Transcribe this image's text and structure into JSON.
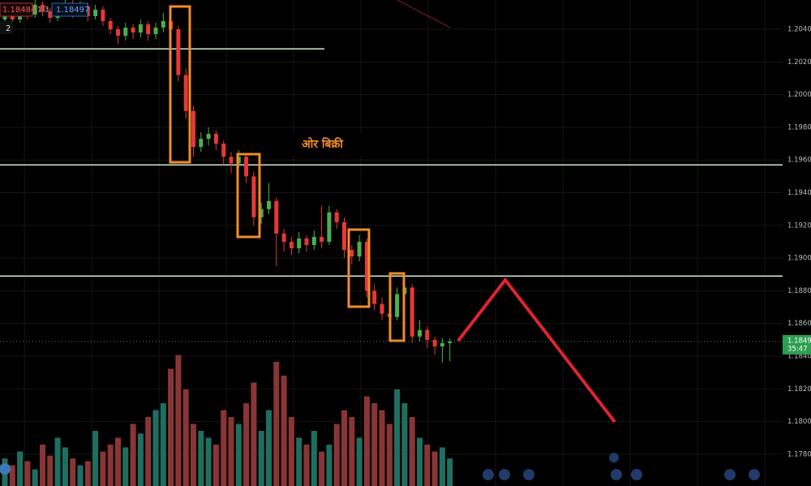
{
  "toolbar": {
    "bid": "1.18484",
    "spread": "1.3",
    "ask": "1.18497",
    "indicator_count": "2"
  },
  "chart_data": {
    "type": "candlestick",
    "annotation": "ओर बिक्री",
    "ylim": [
      1.17606,
      1.20579
    ],
    "yticks": [
      {
        "value": 1.204,
        "label": "1.20400"
      },
      {
        "value": 1.202,
        "label": "1.20200"
      },
      {
        "value": 1.2,
        "label": "1.20000"
      },
      {
        "value": 1.198,
        "label": "1.19800"
      },
      {
        "value": 1.196,
        "label": "1.19600"
      },
      {
        "value": 1.194,
        "label": "1.19400"
      },
      {
        "value": 1.192,
        "label": "1.19200"
      },
      {
        "value": 1.19,
        "label": "1.19000"
      },
      {
        "value": 1.188,
        "label": "1.18800"
      },
      {
        "value": 1.186,
        "label": "1.18600"
      },
      {
        "value": 1.184,
        "label": "1.18400"
      },
      {
        "value": 1.182,
        "label": "1.18200"
      },
      {
        "value": 1.18,
        "label": "1.18000"
      },
      {
        "value": 1.178,
        "label": "1.17800"
      }
    ],
    "grid": true,
    "up_color": "#4caf50",
    "down_color": "#e53935",
    "up_volume_color": "#1f6f60",
    "down_volume_color": "#8a3535",
    "level_color": "#cfe8cf",
    "levels": [
      1.2028,
      1.1957,
      1.1889
    ],
    "last_price": 1.1849,
    "countdown": "35:47",
    "ohlc": [
      [
        1.2046,
        1.2054,
        1.2043,
        1.205
      ],
      [
        1.205,
        1.2053,
        1.2043,
        1.2046
      ],
      [
        1.2046,
        1.2055,
        1.2044,
        1.2052
      ],
      [
        1.2052,
        1.2054,
        1.2046,
        1.2049
      ],
      [
        1.2049,
        1.2058,
        1.2047,
        1.2055
      ],
      [
        1.2055,
        1.2057,
        1.2048,
        1.2051
      ],
      [
        1.2051,
        1.2053,
        1.2044,
        1.2047
      ],
      [
        1.2047,
        1.2056,
        1.2045,
        1.2053
      ],
      [
        1.2053,
        1.2059,
        1.2051,
        1.2056
      ],
      [
        1.2056,
        1.2058,
        1.2047,
        1.205
      ],
      [
        1.205,
        1.2057,
        1.2048,
        1.2054
      ],
      [
        1.2054,
        1.2056,
        1.2045,
        1.2048
      ],
      [
        1.2048,
        1.2055,
        1.2046,
        1.2052
      ],
      [
        1.2052,
        1.2054,
        1.2042,
        1.2045
      ],
      [
        1.2045,
        1.2047,
        1.2037,
        1.204
      ],
      [
        1.204,
        1.2042,
        1.2031,
        1.2036
      ],
      [
        1.2036,
        1.2044,
        1.2033,
        1.2041
      ],
      [
        1.2041,
        1.2043,
        1.2034,
        1.2038
      ],
      [
        1.2038,
        1.2046,
        1.2035,
        1.2043
      ],
      [
        1.2043,
        1.2045,
        1.2033,
        1.2037
      ],
      [
        1.2037,
        1.2044,
        1.2034,
        1.2041
      ],
      [
        1.2041,
        1.205,
        1.2038,
        1.2045
      ],
      [
        1.2045,
        1.2048,
        1.2036,
        1.204
      ],
      [
        1.204,
        1.2042,
        1.2008,
        1.2012
      ],
      [
        1.2012,
        1.2016,
        1.1985,
        1.199
      ],
      [
        1.199,
        1.1993,
        1.1962,
        1.1968
      ],
      [
        1.1968,
        1.1977,
        1.1965,
        1.1973
      ],
      [
        1.1973,
        1.198,
        1.1969,
        1.1976
      ],
      [
        1.1976,
        1.1978,
        1.1966,
        1.197
      ],
      [
        1.197,
        1.1972,
        1.1957,
        1.1962
      ],
      [
        1.1962,
        1.1965,
        1.1952,
        1.1958
      ],
      [
        1.1958,
        1.1966,
        1.1955,
        1.1962
      ],
      [
        1.1962,
        1.1964,
        1.1946,
        1.195
      ],
      [
        1.195,
        1.1953,
        1.192,
        1.1925
      ],
      [
        1.1925,
        1.1934,
        1.1921,
        1.193
      ],
      [
        1.193,
        1.1946,
        1.1927,
        1.1935
      ],
      [
        1.1935,
        1.1937,
        1.1895,
        1.1915
      ],
      [
        1.1915,
        1.1918,
        1.1904,
        1.191
      ],
      [
        1.191,
        1.1913,
        1.1902,
        1.1906
      ],
      [
        1.1906,
        1.1916,
        1.1903,
        1.1912
      ],
      [
        1.1912,
        1.1914,
        1.1904,
        1.1908
      ],
      [
        1.1908,
        1.1917,
        1.1905,
        1.1913
      ],
      [
        1.1913,
        1.1932,
        1.1906,
        1.191
      ],
      [
        1.191,
        1.1932,
        1.1908,
        1.1928
      ],
      [
        1.1928,
        1.193,
        1.1918,
        1.1922
      ],
      [
        1.1922,
        1.1925,
        1.19,
        1.1905
      ],
      [
        1.1905,
        1.1908,
        1.1896,
        1.1901
      ],
      [
        1.1901,
        1.1914,
        1.1898,
        1.191
      ],
      [
        1.191,
        1.1912,
        1.1876,
        1.188
      ],
      [
        1.188,
        1.1884,
        1.1868,
        1.1872
      ],
      [
        1.1872,
        1.1876,
        1.1862,
        1.1866
      ],
      [
        1.1866,
        1.187,
        1.186,
        1.1864
      ],
      [
        1.1864,
        1.1882,
        1.1862,
        1.1878
      ],
      [
        1.1878,
        1.1886,
        1.1875,
        1.1882
      ],
      [
        1.1882,
        1.1884,
        1.1848,
        1.1852
      ],
      [
        1.1852,
        1.1862,
        1.1849,
        1.1856
      ],
      [
        1.1856,
        1.1858,
        1.1845,
        1.185
      ],
      [
        1.185,
        1.1852,
        1.1841,
        1.1846
      ],
      [
        1.1846,
        1.1851,
        1.1836,
        1.1848
      ],
      [
        1.1848,
        1.1851,
        1.1837,
        1.1849
      ]
    ],
    "volume_lim": [
      0,
      100
    ],
    "volume": [
      20,
      15,
      25,
      18,
      12,
      30,
      22,
      35,
      28,
      20,
      15,
      18,
      40,
      25,
      30,
      35,
      28,
      45,
      38,
      50,
      55,
      60,
      85,
      95,
      70,
      45,
      40,
      35,
      30,
      55,
      50,
      45,
      60,
      75,
      40,
      55,
      90,
      80,
      50,
      35,
      30,
      40,
      25,
      30,
      45,
      55,
      50,
      35,
      65,
      60,
      55,
      45,
      70,
      60,
      50,
      35,
      30,
      25,
      28,
      20
    ]
  }
}
